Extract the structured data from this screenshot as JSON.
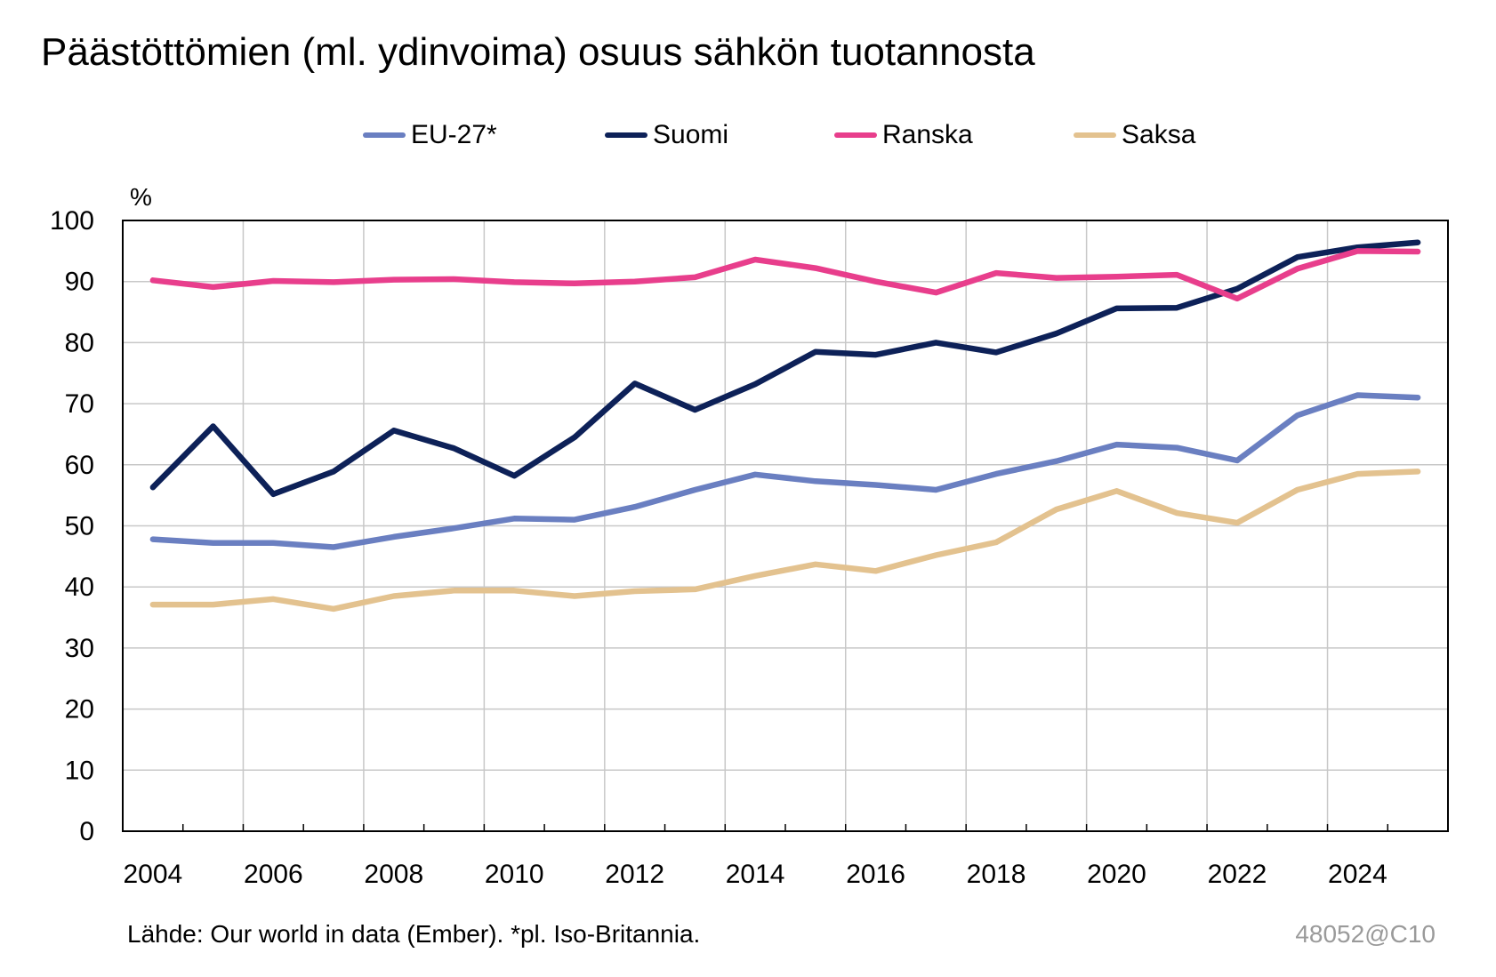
{
  "title": "Päästöttömien (ml. ydinvoima) osuus sähkön tuotannosta",
  "source": "Lähde: Our world in data (Ember). *pl. Iso-Britannia.",
  "code": "48052@C10",
  "chart_data": {
    "type": "line",
    "title": "Päästöttömien (ml. ydinvoima) osuus sähkön tuotannosta",
    "ylabel": "%",
    "xlabel": "",
    "ylim": [
      0,
      100
    ],
    "yticks": [
      "0",
      "10",
      "20",
      "30",
      "40",
      "50",
      "60",
      "70",
      "80",
      "90",
      "100"
    ],
    "xlim": [
      2003.5,
      2025.5
    ],
    "xticks": [
      "2004",
      "2006",
      "2008",
      "2010",
      "2012",
      "2014",
      "2016",
      "2018",
      "2020",
      "2022",
      "2024"
    ],
    "grid": true,
    "legend_position": "top",
    "x": [
      2004,
      2005,
      2006,
      2007,
      2008,
      2009,
      2010,
      2011,
      2012,
      2013,
      2014,
      2015,
      2016,
      2017,
      2018,
      2019,
      2020,
      2021,
      2022,
      2023,
      2024,
      2025
    ],
    "series": [
      {
        "name": "EU-27*",
        "color": "#6a7fc1",
        "values": [
          47.8,
          47.2,
          47.2,
          46.5,
          48.2,
          49.6,
          51.2,
          51.0,
          53.1,
          55.9,
          58.4,
          57.3,
          56.7,
          55.9,
          58.5,
          60.6,
          63.3,
          62.8,
          60.7,
          68.1,
          71.4,
          71.0
        ]
      },
      {
        "name": "Suomi",
        "color": "#0d2158",
        "values": [
          56.3,
          66.3,
          55.2,
          58.9,
          65.6,
          62.7,
          58.2,
          64.5,
          73.3,
          69.0,
          73.2,
          78.5,
          78.0,
          80.0,
          78.4,
          81.5,
          85.6,
          85.7,
          88.8,
          94.0,
          95.6,
          96.4
        ]
      },
      {
        "name": "Ranska",
        "color": "#e83e8c",
        "values": [
          90.2,
          89.1,
          90.1,
          89.9,
          90.3,
          90.4,
          89.9,
          89.7,
          90.0,
          90.7,
          93.6,
          92.2,
          90.0,
          88.2,
          91.4,
          90.6,
          90.8,
          91.1,
          87.2,
          92.1,
          95.0,
          94.9
        ]
      },
      {
        "name": "Saksa",
        "color": "#e3c28f",
        "values": [
          37.1,
          37.1,
          38.0,
          36.4,
          38.5,
          39.4,
          39.4,
          38.5,
          39.3,
          39.6,
          41.8,
          43.7,
          42.6,
          45.2,
          47.3,
          52.7,
          55.7,
          52.1,
          50.5,
          55.9,
          58.5,
          58.9
        ]
      }
    ]
  }
}
